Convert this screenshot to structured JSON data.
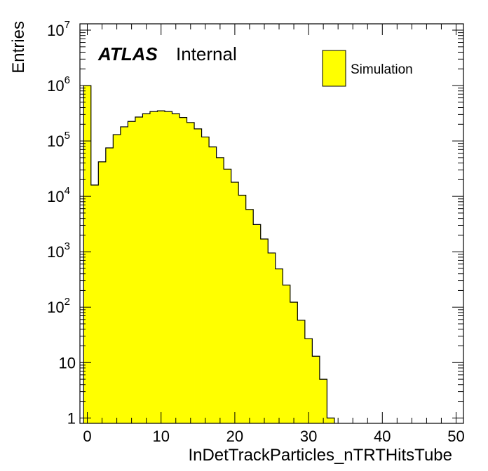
{
  "chart_data": {
    "type": "bar",
    "title": "",
    "xlabel": "InDetTrackParticles_nTRTHitsTube",
    "ylabel": "Entries",
    "ylog": true,
    "xlim": [
      -1,
      51
    ],
    "ylim": [
      0.8,
      13000000
    ],
    "x_ticks": [
      "0",
      "10",
      "20",
      "30",
      "40",
      "50"
    ],
    "y_ticks": [
      {
        "base": "1",
        "exp": ""
      },
      {
        "base": "10",
        "exp": ""
      },
      {
        "base": "10",
        "exp": "2"
      },
      {
        "base": "10",
        "exp": "3"
      },
      {
        "base": "10",
        "exp": "4"
      },
      {
        "base": "10",
        "exp": "5"
      },
      {
        "base": "10",
        "exp": "6"
      },
      {
        "base": "10",
        "exp": "7"
      }
    ],
    "bin_width": 1,
    "bin_start": -0.5,
    "series": [
      {
        "name": "Simulation",
        "values": [
          1000000,
          16000,
          42000,
          75000,
          130000,
          180000,
          225000,
          270000,
          310000,
          340000,
          350000,
          340000,
          310000,
          265000,
          215000,
          165000,
          118000,
          78000,
          50000,
          31000,
          18000,
          10500,
          5800,
          3100,
          1700,
          950,
          490,
          250,
          123,
          58,
          27,
          13,
          5,
          1
        ]
      }
    ],
    "fill_color": "#ffff00",
    "line_color": "#000000",
    "legend_position": "top-right",
    "grid": false
  },
  "atlas_label": {
    "bold": "ATLAS",
    "text": "Internal"
  }
}
